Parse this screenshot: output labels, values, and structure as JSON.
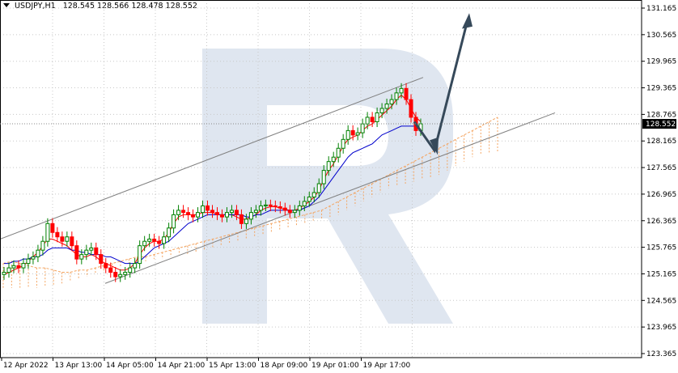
{
  "header": {
    "symbol": "USDJPY,H1",
    "values": "128.545 128.566 128.478 128.552"
  },
  "chart_data": {
    "type": "candlestick",
    "symbol": "USDJPY",
    "timeframe": "H1",
    "ohlc_last": {
      "open": 128.545,
      "high": 128.566,
      "low": 128.478,
      "close": 128.552
    },
    "current_price": "128.552",
    "ylim": [
      123.365,
      131.165
    ],
    "y_ticks": [
      "131.165",
      "130.565",
      "129.965",
      "129.365",
      "128.765",
      "128.165",
      "127.565",
      "126.965",
      "126.365",
      "125.765",
      "125.165",
      "124.565",
      "123.965",
      "123.365"
    ],
    "x_ticks": [
      "12 Apr 2022",
      "13 Apr 13:00",
      "14 Apr 05:00",
      "14 Apr 21:00",
      "15 Apr 13:00",
      "18 Apr 09:00",
      "19 Apr 01:00",
      "19 Apr 17:00"
    ],
    "close_series": [
      125.2,
      125.3,
      125.35,
      125.3,
      125.4,
      125.5,
      125.55,
      125.7,
      125.9,
      126.3,
      126.1,
      126.0,
      125.9,
      126.0,
      125.8,
      125.5,
      125.6,
      125.7,
      125.75,
      125.6,
      125.4,
      125.3,
      125.2,
      125.1,
      125.15,
      125.2,
      125.3,
      125.4,
      125.8,
      125.9,
      125.95,
      125.9,
      125.85,
      126.0,
      126.2,
      126.5,
      126.6,
      126.55,
      126.5,
      126.45,
      126.55,
      126.7,
      126.6,
      126.55,
      126.5,
      126.45,
      126.55,
      126.6,
      126.5,
      126.3,
      126.4,
      126.55,
      126.6,
      126.7,
      126.72,
      126.7,
      126.68,
      126.65,
      126.6,
      126.55,
      126.6,
      126.7,
      126.8,
      126.9,
      127.0,
      127.2,
      127.5,
      127.7,
      127.8,
      128.0,
      128.2,
      128.4,
      128.3,
      128.35,
      128.55,
      128.7,
      128.6,
      128.8,
      128.9,
      129.0,
      129.1,
      129.25,
      129.35,
      129.1,
      128.7,
      128.4,
      128.552
    ],
    "tenkan_series": [
      125.15,
      125.2,
      125.25,
      125.3,
      125.35,
      125.45,
      125.55,
      125.65,
      125.8,
      125.95,
      125.95,
      125.9,
      125.85,
      125.8,
      125.7,
      125.6,
      125.55,
      125.55,
      125.6,
      125.55,
      125.45,
      125.4,
      125.35,
      125.3,
      125.25,
      125.25,
      125.3,
      125.4,
      125.6,
      125.75,
      125.85,
      125.9,
      125.9,
      125.95,
      126.1,
      126.3,
      126.45,
      126.5,
      126.5,
      126.5,
      126.5,
      126.55,
      126.55,
      126.55,
      126.5,
      126.5,
      126.5,
      126.5,
      126.45,
      126.4,
      126.4,
      126.45,
      126.5,
      126.6,
      126.65,
      126.68,
      126.68,
      126.65,
      126.62,
      126.6,
      126.6,
      126.65,
      126.72,
      126.8,
      126.9,
      127.05,
      127.3,
      127.5,
      127.65,
      127.85,
      128.05,
      128.2,
      128.25,
      128.3,
      128.4,
      128.5,
      128.55,
      128.65,
      128.75,
      128.85,
      128.95,
      129.1,
      129.2,
      129.1,
      128.9,
      128.7,
      128.6
    ],
    "kijun_series": [
      125.4,
      125.4,
      125.45,
      125.45,
      125.5,
      125.5,
      125.55,
      125.55,
      125.6,
      125.7,
      125.75,
      125.75,
      125.75,
      125.75,
      125.7,
      125.7,
      125.65,
      125.65,
      125.6,
      125.6,
      125.6,
      125.55,
      125.55,
      125.5,
      125.45,
      125.4,
      125.4,
      125.4,
      125.45,
      125.55,
      125.65,
      125.75,
      125.8,
      125.85,
      125.9,
      126.0,
      126.1,
      126.2,
      126.3,
      126.35,
      126.4,
      126.45,
      126.5,
      126.5,
      126.5,
      126.5,
      126.5,
      126.5,
      126.5,
      126.5,
      126.45,
      126.45,
      126.5,
      126.5,
      126.55,
      126.6,
      126.6,
      126.6,
      126.6,
      126.6,
      126.6,
      126.6,
      126.65,
      126.7,
      126.8,
      126.9,
      127.05,
      127.2,
      127.35,
      127.5,
      127.65,
      127.8,
      127.9,
      127.95,
      128.0,
      128.05,
      128.1,
      128.2,
      128.3,
      128.35,
      128.4,
      128.45,
      128.5,
      128.5,
      128.5,
      128.5,
      128.5
    ],
    "cloud_span_a": [
      125.4,
      125.45,
      125.4,
      125.35,
      125.3,
      125.3,
      125.25,
      125.2,
      125.2,
      125.25,
      125.25,
      125.3,
      125.35,
      125.4,
      125.45,
      125.5,
      125.55,
      125.55,
      125.6,
      125.65,
      125.7,
      125.75,
      125.8,
      125.85,
      125.9,
      125.95,
      126.0,
      126.05,
      126.1,
      126.15,
      126.2,
      126.25,
      126.3,
      126.35,
      126.4,
      126.45,
      126.5,
      126.55,
      126.6,
      126.7,
      126.8,
      126.9,
      127.0,
      127.1,
      127.2,
      127.3,
      127.4,
      127.5,
      127.6,
      127.7,
      127.8,
      127.9,
      128.0,
      128.1,
      128.2,
      128.3,
      128.4,
      128.5,
      128.6,
      128.7
    ],
    "cloud_span_b": [
      124.85,
      124.85,
      124.85,
      124.85,
      124.85,
      124.9,
      124.9,
      124.95,
      125.0,
      125.05,
      125.1,
      125.15,
      125.2,
      125.25,
      125.3,
      125.35,
      125.4,
      125.45,
      125.5,
      125.5,
      125.55,
      125.6,
      125.6,
      125.65,
      125.7,
      125.75,
      125.8,
      125.85,
      125.9,
      125.95,
      126.0,
      126.05,
      126.1,
      126.15,
      126.2,
      126.25,
      126.3,
      126.35,
      126.4,
      126.45,
      126.5,
      126.6,
      126.7,
      126.8,
      126.9,
      127.0,
      127.1,
      127.15,
      127.2,
      127.25,
      127.3,
      127.35,
      127.4,
      127.5,
      127.6,
      127.7,
      127.8,
      127.85,
      127.9,
      127.9
    ],
    "colors": {
      "bull": "#008000",
      "bear": "#ff0000",
      "tenkan": "#ff0000",
      "kijun": "#0000cc",
      "cloud": "#f4a460",
      "channel": "#808080",
      "arrow": "#36495a",
      "watermark": "#dfe6f0"
    }
  }
}
